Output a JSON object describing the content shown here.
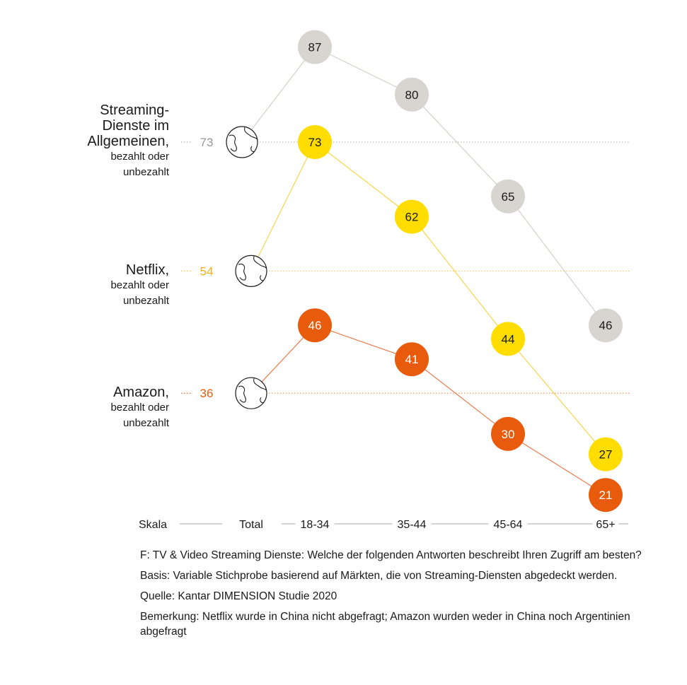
{
  "chart_data": {
    "type": "line",
    "categories": [
      "Total",
      "18-34",
      "35-44",
      "45-64",
      "65+"
    ],
    "axis_label": "Skala",
    "series": [
      {
        "key": "streaming",
        "title": "Streaming-Dienste im Allgemeinen,",
        "title_lines": [
          "Streaming-",
          "Dienste im",
          "Allgemeinen,"
        ],
        "subtitle_lines": [
          "bezahlt oder",
          "unbezahlt"
        ],
        "values": [
          73,
          87,
          80,
          65,
          46
        ],
        "color": "#d8d4cf",
        "total_color": "#999999",
        "line_color": "#d4d0cb",
        "text_color": "#1a1a1a"
      },
      {
        "key": "netflix",
        "title": "Netflix,",
        "title_lines": [
          "Netflix,"
        ],
        "subtitle_lines": [
          "bezahlt oder",
          "unbezahlt"
        ],
        "values": [
          54,
          73,
          62,
          44,
          27
        ],
        "color": "#ffdd00",
        "total_color": "#f2b21c",
        "line_color": "#f7d64a",
        "text_color": "#1a1a1a"
      },
      {
        "key": "amazon",
        "title": "Amazon,",
        "title_lines": [
          "Amazon,"
        ],
        "subtitle_lines": [
          "bezahlt oder",
          "unbezahlt"
        ],
        "values": [
          36,
          46,
          41,
          30,
          21
        ],
        "color": "#e95b0c",
        "total_color": "#e95b0c",
        "line_color": "#ec7a4a",
        "text_color": "#ffffff"
      }
    ]
  },
  "footnotes": {
    "question": "F: TV & Video Streaming Dienste: Welche der folgenden Antworten beschreibt Ihren Zugriff am besten?",
    "basis": "Basis: Variable Stichprobe basierend auf Märkten, die von Streaming-Diensten abgedeckt werden.",
    "source": "Quelle: Kantar DIMENSION Studie 2020",
    "note": "Bemerkung: Netflix wurde in China nicht abgefragt; Amazon wurden weder in China noch Argentinien abgefragt"
  },
  "icons": {
    "total_marker": "globe-icon"
  }
}
